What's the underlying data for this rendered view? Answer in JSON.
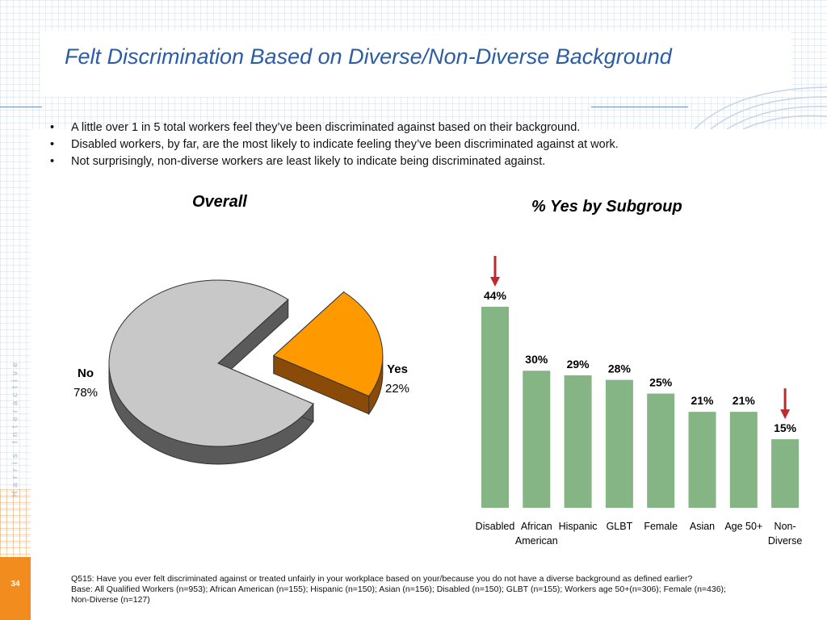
{
  "title": "Felt Discrimination Based on Diverse/Non-Diverse Background",
  "bullets": [
    "A little over 1 in 5 total workers feel they’ve been discriminated against based on their background.",
    "Disabled workers, by far, are the most likely to indicate feeling they’ve been discriminated against at work.",
    "Not surprisingly, non-diverse workers are least likely to indicate being discriminated against."
  ],
  "brand_vertical": "Harris Interactive",
  "page_number": "34",
  "footnote": {
    "question": "Q515: Have you ever felt discriminated against or treated unfairly in your workplace based on your/because you do not have a diverse background as defined earlier?",
    "base_line1": "Base: All Qualified Workers (n=953); African American (n=155); Hispanic (n=150); Asian (n=156); Disabled (n=150); GLBT (n=155); Workers age 50+(n=306); Female (n=436);",
    "base_line2": "Non-Diverse (n=127)"
  },
  "colors": {
    "title": "#2a5ca8",
    "bar": "#85b585",
    "pie_no": "#c8c8c8",
    "pie_yes": "#ff9900",
    "arrow": "#c0282d",
    "page_box": "#f28c1e"
  },
  "chart_data": [
    {
      "type": "pie",
      "title": "Overall",
      "slices": [
        {
          "name": "No",
          "value": 78,
          "label": "78%"
        },
        {
          "name": "Yes",
          "value": 22,
          "label": "22%"
        }
      ],
      "exploded": "Yes"
    },
    {
      "type": "bar",
      "title": "% Yes by Subgroup",
      "categories": [
        "Disabled",
        "African American",
        "Hispanic",
        "GLBT",
        "Female",
        "Asian",
        "Age 50+",
        "Non-Diverse"
      ],
      "category_lines": [
        [
          "Disabled"
        ],
        [
          "African",
          "American"
        ],
        [
          "Hispanic"
        ],
        [
          "GLBT"
        ],
        [
          "Female"
        ],
        [
          "Asian"
        ],
        [
          "Age 50+"
        ],
        [
          "Non-",
          "Diverse"
        ]
      ],
      "values": [
        44,
        30,
        29,
        28,
        25,
        21,
        21,
        15
      ],
      "labels": [
        "44%",
        "30%",
        "29%",
        "28%",
        "25%",
        "21%",
        "21%",
        "15%"
      ],
      "ylim": [
        0,
        44
      ],
      "grid": false,
      "highlighted": [
        "Disabled",
        "Non-Diverse"
      ]
    }
  ]
}
